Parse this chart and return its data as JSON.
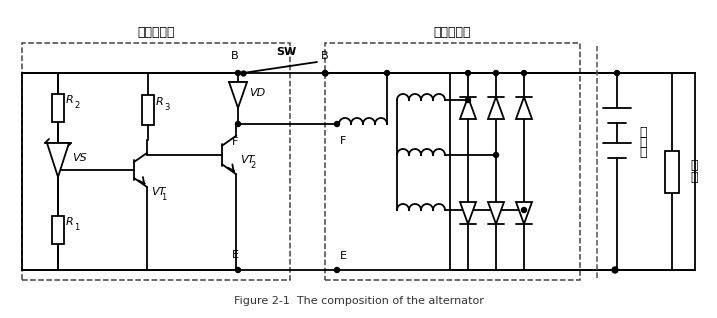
{
  "title": "Figure 2-1  The composition of the alternator",
  "bg_color": "#ffffff",
  "lc": "#000000",
  "fig_width": 7.17,
  "fig_height": 3.18,
  "dpi": 100,
  "label_reg": "电子调节器",
  "label_alt": "交流发电机",
  "label_batt1": "蓄",
  "label_batt2": "电",
  "label_batt3": "池",
  "label_load1": "负",
  "label_load2": "载",
  "label_SW": "SW",
  "label_B1": "B",
  "label_B2": "B",
  "label_F1": "F",
  "label_F2": "F",
  "label_E1": "E",
  "label_E2": "E",
  "label_VD": "VD",
  "label_R1": "R",
  "label_R1sub": "1",
  "label_R2": "R",
  "label_R2sub": "2",
  "label_R3": "R",
  "label_R3sub": "3",
  "label_VS": "VS",
  "label_VT1": "VT",
  "label_VT1sub": "1",
  "label_VT2": "VT",
  "label_VT2sub": "2"
}
